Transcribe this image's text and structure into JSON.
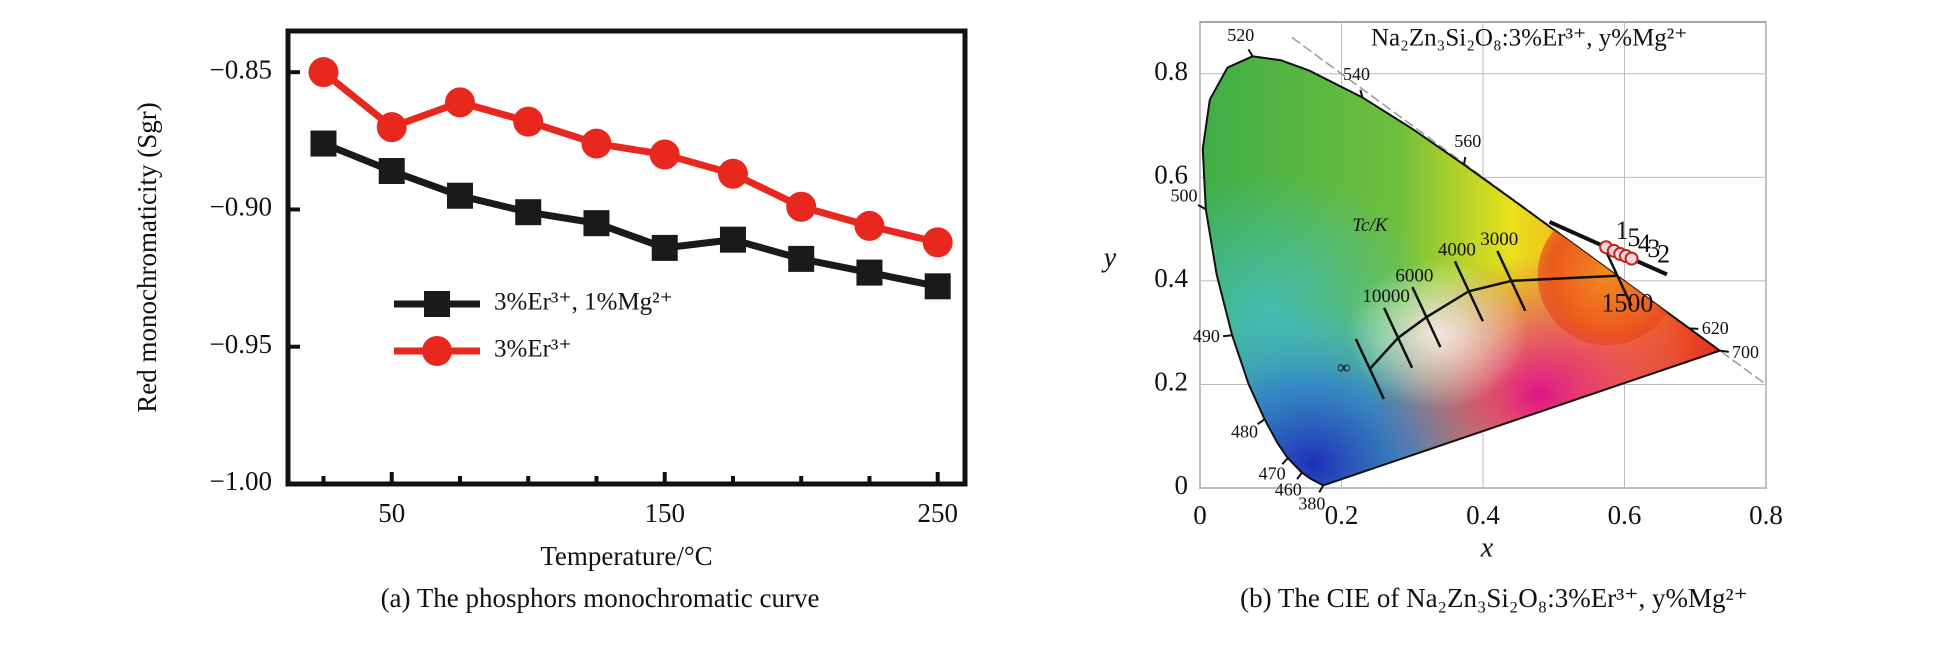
{
  "chart_data": [
    {
      "type": "line",
      "x_label": "Temperature/°C",
      "y_label": "Red monochromaticity (Sgr)",
      "caption": "(a) The phosphors monochromatic curve",
      "x": [
        25,
        50,
        75,
        100,
        125,
        150,
        175,
        200,
        225,
        250
      ],
      "series": [
        {
          "name": "3%Er³⁺,  1%Mg²⁺",
          "color": "#1a1a1a",
          "marker": "square",
          "values": [
            -0.876,
            -0.886,
            -0.895,
            -0.901,
            -0.905,
            -0.914,
            -0.911,
            -0.918,
            -0.923,
            -0.928
          ]
        },
        {
          "name": "3%Er³⁺",
          "color": "#e8281e",
          "marker": "circle",
          "values": [
            -0.85,
            -0.87,
            -0.861,
            -0.868,
            -0.876,
            -0.88,
            -0.887,
            -0.899,
            -0.906,
            -0.912
          ]
        }
      ],
      "xlim": [
        12,
        260
      ],
      "xticks": [
        50,
        150,
        250
      ],
      "xminorticks": [
        25,
        75,
        100,
        125,
        175,
        200,
        225
      ],
      "ylim": [
        -1.0,
        -0.835
      ],
      "yticks": [
        {
          "value": -0.85,
          "label": "−0.85"
        },
        {
          "value": -0.9,
          "label": "−0.90"
        },
        {
          "value": -0.95,
          "label": "−0.95"
        },
        {
          "value": -1.0,
          "label": "−1.00"
        }
      ]
    },
    {
      "type": "cie",
      "title": "Na₂Zn₃Si₂O₈:3%Er³⁺,  y%Mg²⁺",
      "x_label": "x",
      "y_label": "y",
      "caption": "(b) The CIE of Na₂Zn₃Si₂O₈:3%Er³⁺,  y%Mg²⁺",
      "xlim": [
        0,
        0.8
      ],
      "xticks": [
        0,
        0.2,
        0.4,
        0.6,
        0.8
      ],
      "ylim": [
        0,
        0.9
      ],
      "yticks": [
        0,
        0.2,
        0.4,
        0.6,
        0.8
      ],
      "grid": true,
      "locus": {
        "x": [
          0.1741,
          0.1566,
          0.144,
          0.1241,
          0.1096,
          0.0913,
          0.0687,
          0.0454,
          0.0235,
          0.0082,
          0.0039,
          0.0139,
          0.0389,
          0.0743,
          0.1142,
          0.1547,
          0.2296,
          0.3016,
          0.3731,
          0.4441,
          0.5125,
          0.627,
          0.6915,
          0.7347
        ],
        "y": [
          0.005,
          0.0177,
          0.0297,
          0.0578,
          0.0868,
          0.1327,
          0.2007,
          0.295,
          0.4127,
          0.5384,
          0.6548,
          0.7502,
          0.812,
          0.8338,
          0.8262,
          0.8059,
          0.7543,
          0.6923,
          0.6245,
          0.5547,
          0.4866,
          0.3725,
          0.3083,
          0.2653
        ]
      },
      "wavelength_labels": [
        {
          "label": "380",
          "x": 0.1741,
          "y": 0.005
        },
        {
          "label": "460",
          "x": 0.144,
          "y": 0.0297
        },
        {
          "label": "470",
          "x": 0.1241,
          "y": 0.0578
        },
        {
          "label": "480",
          "x": 0.0913,
          "y": 0.1327
        },
        {
          "label": "490",
          "x": 0.0454,
          "y": 0.295
        },
        {
          "label": "500",
          "x": 0.0082,
          "y": 0.5384
        },
        {
          "label": "520",
          "x": 0.0743,
          "y": 0.8338
        },
        {
          "label": "540",
          "x": 0.2296,
          "y": 0.7543
        },
        {
          "label": "560",
          "x": 0.3731,
          "y": 0.6245
        },
        {
          "label": "620",
          "x": 0.6915,
          "y": 0.3083
        },
        {
          "label": "700",
          "x": 0.7347,
          "y": 0.2653
        }
      ],
      "planckian_title": "Tc/K",
      "planckian": {
        "labels": [
          "∞",
          "10000",
          "6000",
          "4000",
          "3000",
          "1500"
        ],
        "x": [
          0.24,
          0.28,
          0.32,
          0.38,
          0.44,
          0.59
        ],
        "y": [
          0.23,
          0.29,
          0.33,
          0.38,
          0.4,
          0.41
        ]
      },
      "points": {
        "labels": [
          "1",
          "5",
          "4",
          "3",
          "2"
        ],
        "x": [
          0.574,
          0.585,
          0.594,
          0.602,
          0.61
        ],
        "y": [
          0.465,
          0.458,
          0.452,
          0.448,
          0.443
        ],
        "color": "#c0281e"
      }
    }
  ]
}
